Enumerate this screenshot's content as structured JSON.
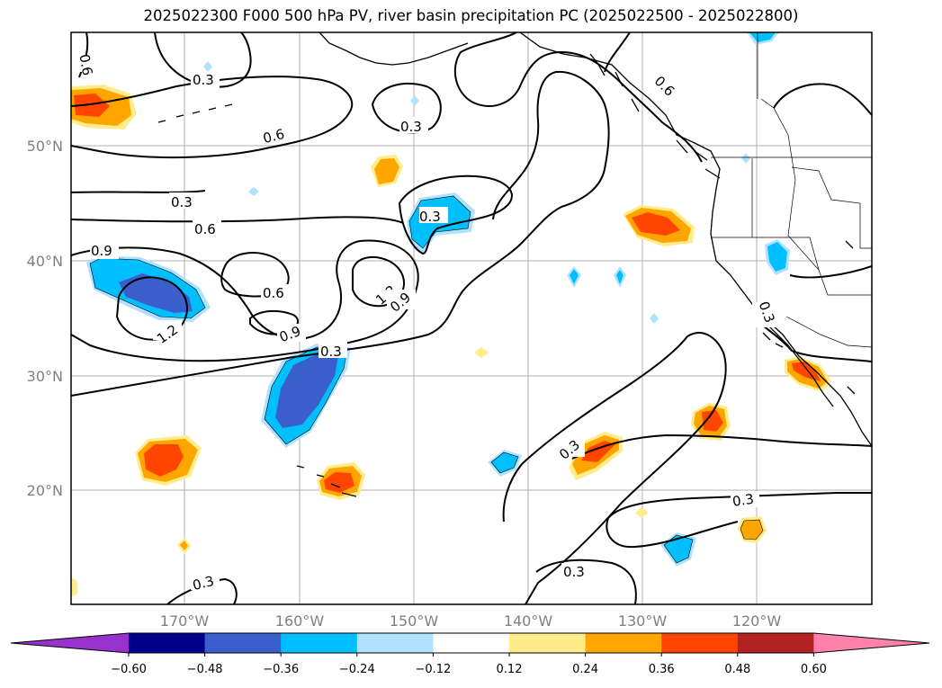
{
  "title": "2025022300 F000 500 hPa PV, river basin precipitation PC (2025022500 - 2025022800)",
  "map": {
    "lat_labels": [
      "50°N",
      "40°N",
      "30°N",
      "20°N"
    ],
    "lon_labels": [
      "170°W",
      "160°W",
      "150°W",
      "140°W",
      "130°W",
      "120°W"
    ],
    "contour_labels": [
      {
        "text": "0.6"
      },
      {
        "text": "0.3"
      },
      {
        "text": "0.6"
      },
      {
        "text": "0.3"
      },
      {
        "text": "0.6"
      },
      {
        "text": "0.3"
      },
      {
        "text": "0.6"
      },
      {
        "text": "0.3"
      },
      {
        "text": "0.9"
      },
      {
        "text": "0.6"
      },
      {
        "text": "1.2"
      },
      {
        "text": "1.2"
      },
      {
        "text": "0.9"
      },
      {
        "text": "0.9"
      },
      {
        "text": "0.3"
      },
      {
        "text": "0.3"
      },
      {
        "text": "0.3"
      },
      {
        "text": "0.3"
      },
      {
        "text": "0.3"
      },
      {
        "text": "0.3"
      }
    ]
  },
  "colorbar": {
    "ticks": [
      "−0.60",
      "−0.48",
      "−0.36",
      "−0.24",
      "−0.12",
      "0.12",
      "0.24",
      "0.36",
      "0.48",
      "0.60"
    ],
    "colors": [
      "#9932cc",
      "#00008b",
      "#3a5fcd",
      "#00bfff",
      "#b0e2ff",
      "#ffffff",
      "#ffec8b",
      "#ffa500",
      "#ff4500",
      "#b22222",
      "#ff82ab"
    ]
  }
}
